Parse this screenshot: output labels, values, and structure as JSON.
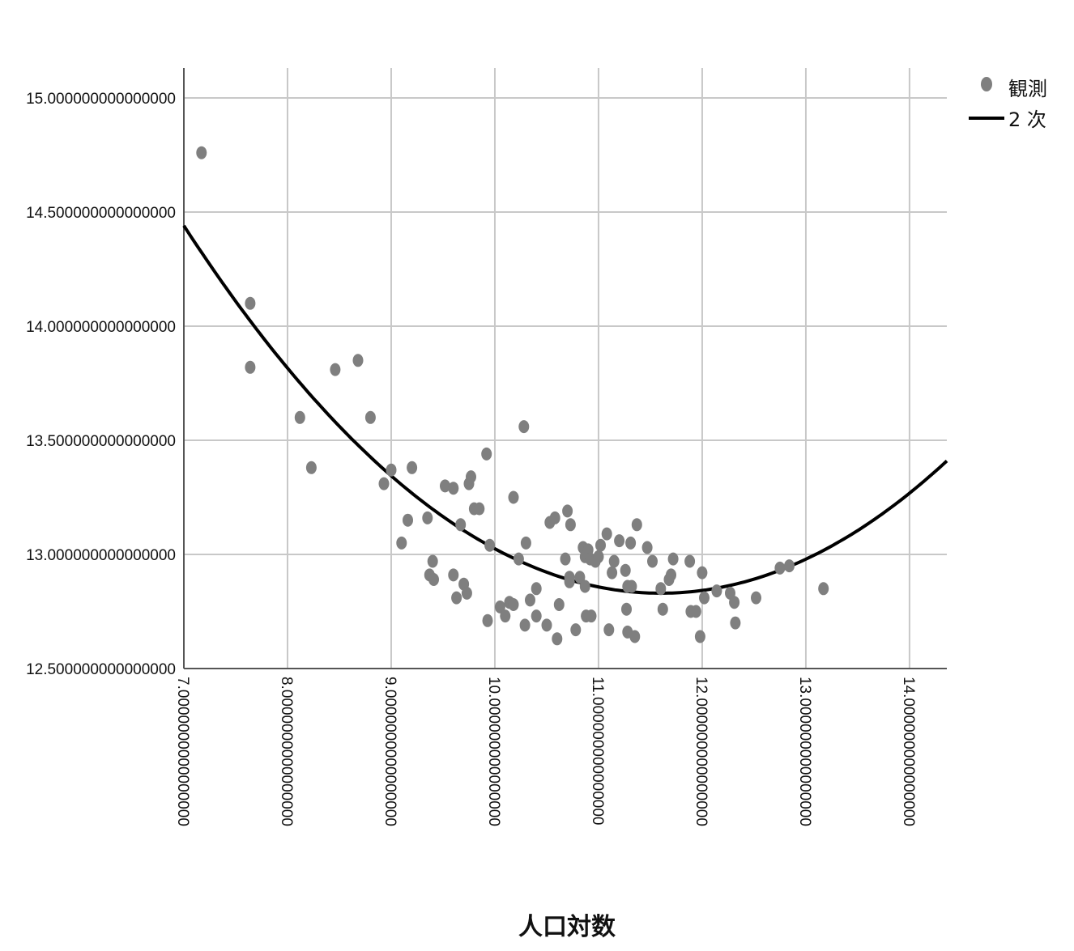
{
  "chart_data": {
    "type": "scatter",
    "xlabel": "人口対数",
    "ylabel": "",
    "xlim": [
      7.0,
      14.36
    ],
    "ylim": [
      12.5,
      15.13
    ],
    "x_ticks": [
      7.0,
      8.0,
      9.0,
      10.0,
      11.0,
      12.0,
      13.0,
      14.0
    ],
    "y_ticks": [
      12.5,
      13.0,
      13.5,
      14.0,
      14.5,
      15.0
    ],
    "x_tick_labels": [
      "7.0000000000000000",
      "8.0000000000000000",
      "9.0000000000000000",
      "10.000000000000000",
      "11.000000000000000",
      "12.000000000000000",
      "13.000000000000000",
      "14.000000000000000"
    ],
    "y_tick_labels": [
      "12.500000000000000",
      "13.000000000000000",
      "13.500000000000000",
      "14.000000000000000",
      "14.500000000000000",
      "15.000000000000000"
    ],
    "grid": true,
    "legend_position": "top-right",
    "legend": [
      {
        "label": "観測",
        "kind": "marker",
        "color": "#7f7f7f"
      },
      {
        "label": "2 次",
        "kind": "line",
        "color": "#000000"
      }
    ],
    "series": [
      {
        "name": "観測",
        "kind": "scatter",
        "color": "#7f7f7f",
        "points": [
          [
            7.17,
            14.76
          ],
          [
            7.64,
            14.1
          ],
          [
            7.64,
            13.82
          ],
          [
            8.12,
            13.6
          ],
          [
            8.23,
            13.38
          ],
          [
            8.46,
            13.81
          ],
          [
            8.68,
            13.85
          ],
          [
            8.8,
            13.6
          ],
          [
            8.93,
            13.31
          ],
          [
            9.0,
            13.37
          ],
          [
            9.1,
            13.05
          ],
          [
            9.16,
            13.15
          ],
          [
            9.2,
            13.38
          ],
          [
            9.35,
            13.16
          ],
          [
            9.37,
            12.91
          ],
          [
            9.4,
            12.97
          ],
          [
            9.41,
            12.89
          ],
          [
            9.52,
            13.3
          ],
          [
            9.6,
            13.29
          ],
          [
            9.6,
            12.91
          ],
          [
            9.63,
            12.81
          ],
          [
            9.67,
            13.13
          ],
          [
            9.7,
            12.87
          ],
          [
            9.73,
            12.83
          ],
          [
            9.75,
            13.31
          ],
          [
            9.77,
            13.34
          ],
          [
            9.8,
            13.2
          ],
          [
            9.85,
            13.2
          ],
          [
            9.92,
            13.44
          ],
          [
            9.95,
            13.04
          ],
          [
            9.93,
            12.71
          ],
          [
            10.05,
            12.77
          ],
          [
            10.1,
            12.73
          ],
          [
            10.14,
            12.79
          ],
          [
            10.18,
            12.78
          ],
          [
            10.18,
            13.25
          ],
          [
            10.23,
            12.98
          ],
          [
            10.28,
            13.56
          ],
          [
            10.3,
            13.05
          ],
          [
            10.29,
            12.69
          ],
          [
            10.34,
            12.8
          ],
          [
            10.4,
            12.85
          ],
          [
            10.4,
            12.73
          ],
          [
            10.5,
            12.69
          ],
          [
            10.53,
            13.14
          ],
          [
            10.58,
            13.16
          ],
          [
            10.6,
            12.63
          ],
          [
            10.62,
            12.78
          ],
          [
            10.68,
            12.98
          ],
          [
            10.7,
            13.19
          ],
          [
            10.72,
            12.9
          ],
          [
            10.73,
            13.13
          ],
          [
            10.72,
            12.88
          ],
          [
            10.78,
            12.67
          ],
          [
            10.82,
            12.9
          ],
          [
            10.85,
            13.03
          ],
          [
            10.87,
            12.99
          ],
          [
            10.87,
            12.86
          ],
          [
            10.88,
            12.73
          ],
          [
            10.9,
            13.02
          ],
          [
            10.92,
            12.98
          ],
          [
            10.93,
            12.73
          ],
          [
            10.97,
            12.97
          ],
          [
            11.0,
            12.99
          ],
          [
            11.02,
            13.04
          ],
          [
            11.08,
            13.09
          ],
          [
            11.1,
            12.67
          ],
          [
            11.13,
            12.92
          ],
          [
            11.15,
            12.97
          ],
          [
            11.2,
            13.06
          ],
          [
            11.26,
            12.93
          ],
          [
            11.27,
            12.76
          ],
          [
            11.28,
            12.86
          ],
          [
            11.28,
            12.66
          ],
          [
            11.31,
            13.05
          ],
          [
            11.32,
            12.86
          ],
          [
            11.35,
            12.64
          ],
          [
            11.37,
            13.13
          ],
          [
            11.47,
            13.03
          ],
          [
            11.52,
            12.97
          ],
          [
            11.6,
            12.85
          ],
          [
            11.62,
            12.76
          ],
          [
            11.68,
            12.89
          ],
          [
            11.7,
            12.91
          ],
          [
            11.72,
            12.98
          ],
          [
            11.88,
            12.97
          ],
          [
            11.89,
            12.75
          ],
          [
            11.94,
            12.75
          ],
          [
            11.98,
            12.64
          ],
          [
            12.0,
            12.92
          ],
          [
            12.02,
            12.81
          ],
          [
            12.14,
            12.84
          ],
          [
            12.27,
            12.83
          ],
          [
            12.31,
            12.79
          ],
          [
            12.32,
            12.7
          ],
          [
            12.52,
            12.81
          ],
          [
            12.75,
            12.94
          ],
          [
            12.84,
            12.95
          ],
          [
            13.17,
            12.85
          ]
        ]
      },
      {
        "name": "2 次",
        "kind": "line",
        "color": "#000000",
        "quadratic": {
          "vertex_x": 11.6,
          "vertex_y": 12.83,
          "a": 0.0761
        }
      }
    ]
  }
}
